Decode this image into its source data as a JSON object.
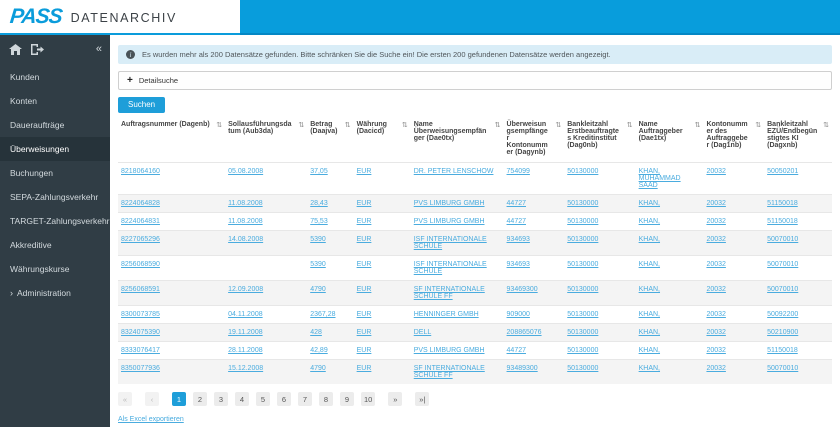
{
  "header": {
    "logo": "PASS",
    "app_name": "DATENARCHIV"
  },
  "icons": {
    "collapse": "«",
    "info": "i",
    "plus": "+",
    "sort": "⇅",
    "home": "home-icon",
    "logout": "logout-icon",
    "admin_chevron": "›"
  },
  "sidebar": {
    "items": [
      {
        "label": "Kunden",
        "active": false
      },
      {
        "label": "Konten",
        "active": false
      },
      {
        "label": "Daueraufträge",
        "active": false
      },
      {
        "label": "Überweisungen",
        "active": true
      },
      {
        "label": "Buchungen",
        "active": false
      },
      {
        "label": "SEPA-Zahlungsverkehr",
        "active": false
      },
      {
        "label": "TARGET-Zahlungsverkehr",
        "active": false
      },
      {
        "label": "Akkreditive",
        "active": false
      },
      {
        "label": "Währungskurse",
        "active": false
      },
      {
        "label": "Administration",
        "active": false,
        "chevron": "›"
      }
    ]
  },
  "main": {
    "info_message": "Es wurden mehr als 200 Datensätze gefunden. Bitte schränken Sie die Suche ein! Die ersten 200 gefundenen Datensätze werden angezeigt.",
    "detail_search_label": "Detailsuche",
    "search_button": "Suchen",
    "table": {
      "columns": [
        "Auftragsnummer (Dagenb)",
        "Sollausführungsdatum (Aub3da)",
        "Betrag (Daajva)",
        "Währung (Dacicd)",
        "Name Überweisungsempfänger (Dae0tx)",
        "Überweisungsempfänger Kontonummer (Dagynb)",
        "Bankleitzahl Erstbeauftragtes Kreditinstitut (Dag0nb)",
        "Name Auftraggeber (Dae1tx)",
        "Kontonummer des Auftraggeber (Dag1nb)",
        "Bankleitzahl EZÜ/Endbegünstigtes KI (Dagxnb)"
      ],
      "col_widths": [
        "15%",
        "11.5%",
        "6.5%",
        "8%",
        "13%",
        "8.5%",
        "10%",
        "9.5%",
        "8.5%",
        "9.5%"
      ],
      "rows": [
        [
          "8218064160",
          "05.08.2008",
          "37,05",
          "EUR",
          "DR. PETER LENSCHOW",
          "754099",
          "50130000",
          "KHAN, MUHAMMAD SAAD",
          "20032",
          "50050201"
        ],
        [
          "8224064828",
          "11.08.2008",
          "28,43",
          "EUR",
          "PVS LIMBURG GMBH",
          "44727",
          "50130000",
          "KHAN,",
          "20032",
          "51150018"
        ],
        [
          "8224064831",
          "11.08.2008",
          "75,53",
          "EUR",
          "PVS LIMBURG GMBH",
          "44727",
          "50130000",
          "KHAN,",
          "20032",
          "51150018"
        ],
        [
          "8227065296",
          "14.08.2008",
          "5390",
          "EUR",
          "ISF INTERNATIONALE SCHULE",
          "934693",
          "50130000",
          "KHAN,",
          "20032",
          "50070010"
        ],
        [
          "8256068590",
          "",
          "5390",
          "EUR",
          "ISF INTERNATIONALE SCHULE",
          "934693",
          "50130000",
          "KHAN,",
          "20032",
          "50070010"
        ],
        [
          "8256068591",
          "12.09.2008",
          "4790",
          "EUR",
          "SF INTERNATIONALE SCHULE FF",
          "93469300",
          "50130000",
          "KHAN,",
          "20032",
          "50070010"
        ],
        [
          "8300073785",
          "04.11.2008",
          "2367,28",
          "EUR",
          "HENNINGER GMBH",
          "909000",
          "50130000",
          "KHAN,",
          "20032",
          "50092200"
        ],
        [
          "8324075390",
          "19.11.2008",
          "428",
          "EUR",
          "DELL",
          "208865076",
          "50130000",
          "KHAN,",
          "20032",
          "50210900"
        ],
        [
          "8333076417",
          "28.11.2008",
          "42,89",
          "EUR",
          "PVS LIMBURG GMBH",
          "44727",
          "50130000",
          "KHAN,",
          "20032",
          "51150018"
        ],
        [
          "8350077936",
          "15.12.2008",
          "4790",
          "EUR",
          "SF INTERNATIONALE SCHULE FF",
          "93489300",
          "50130000",
          "KHAN,",
          "20032",
          "50070010"
        ]
      ]
    },
    "pagination": {
      "first_label": "«",
      "prev_label": "‹",
      "pages": [
        "1",
        "2",
        "3",
        "4",
        "5",
        "6",
        "7",
        "8",
        "9",
        "10"
      ],
      "active_page": "1",
      "next_label": "»",
      "last_label": "»|"
    },
    "export_link": "Als Excel exportieren"
  },
  "colors": {
    "accent_blue": "#089ddc",
    "button_blue": "#1e9ed9",
    "link_blue": "#4aacdf",
    "sidebar_bg": "#303d45",
    "sidebar_active_bg": "#26333a",
    "info_bg": "#d9edf7",
    "row_stripe": "#f4f4f4"
  }
}
